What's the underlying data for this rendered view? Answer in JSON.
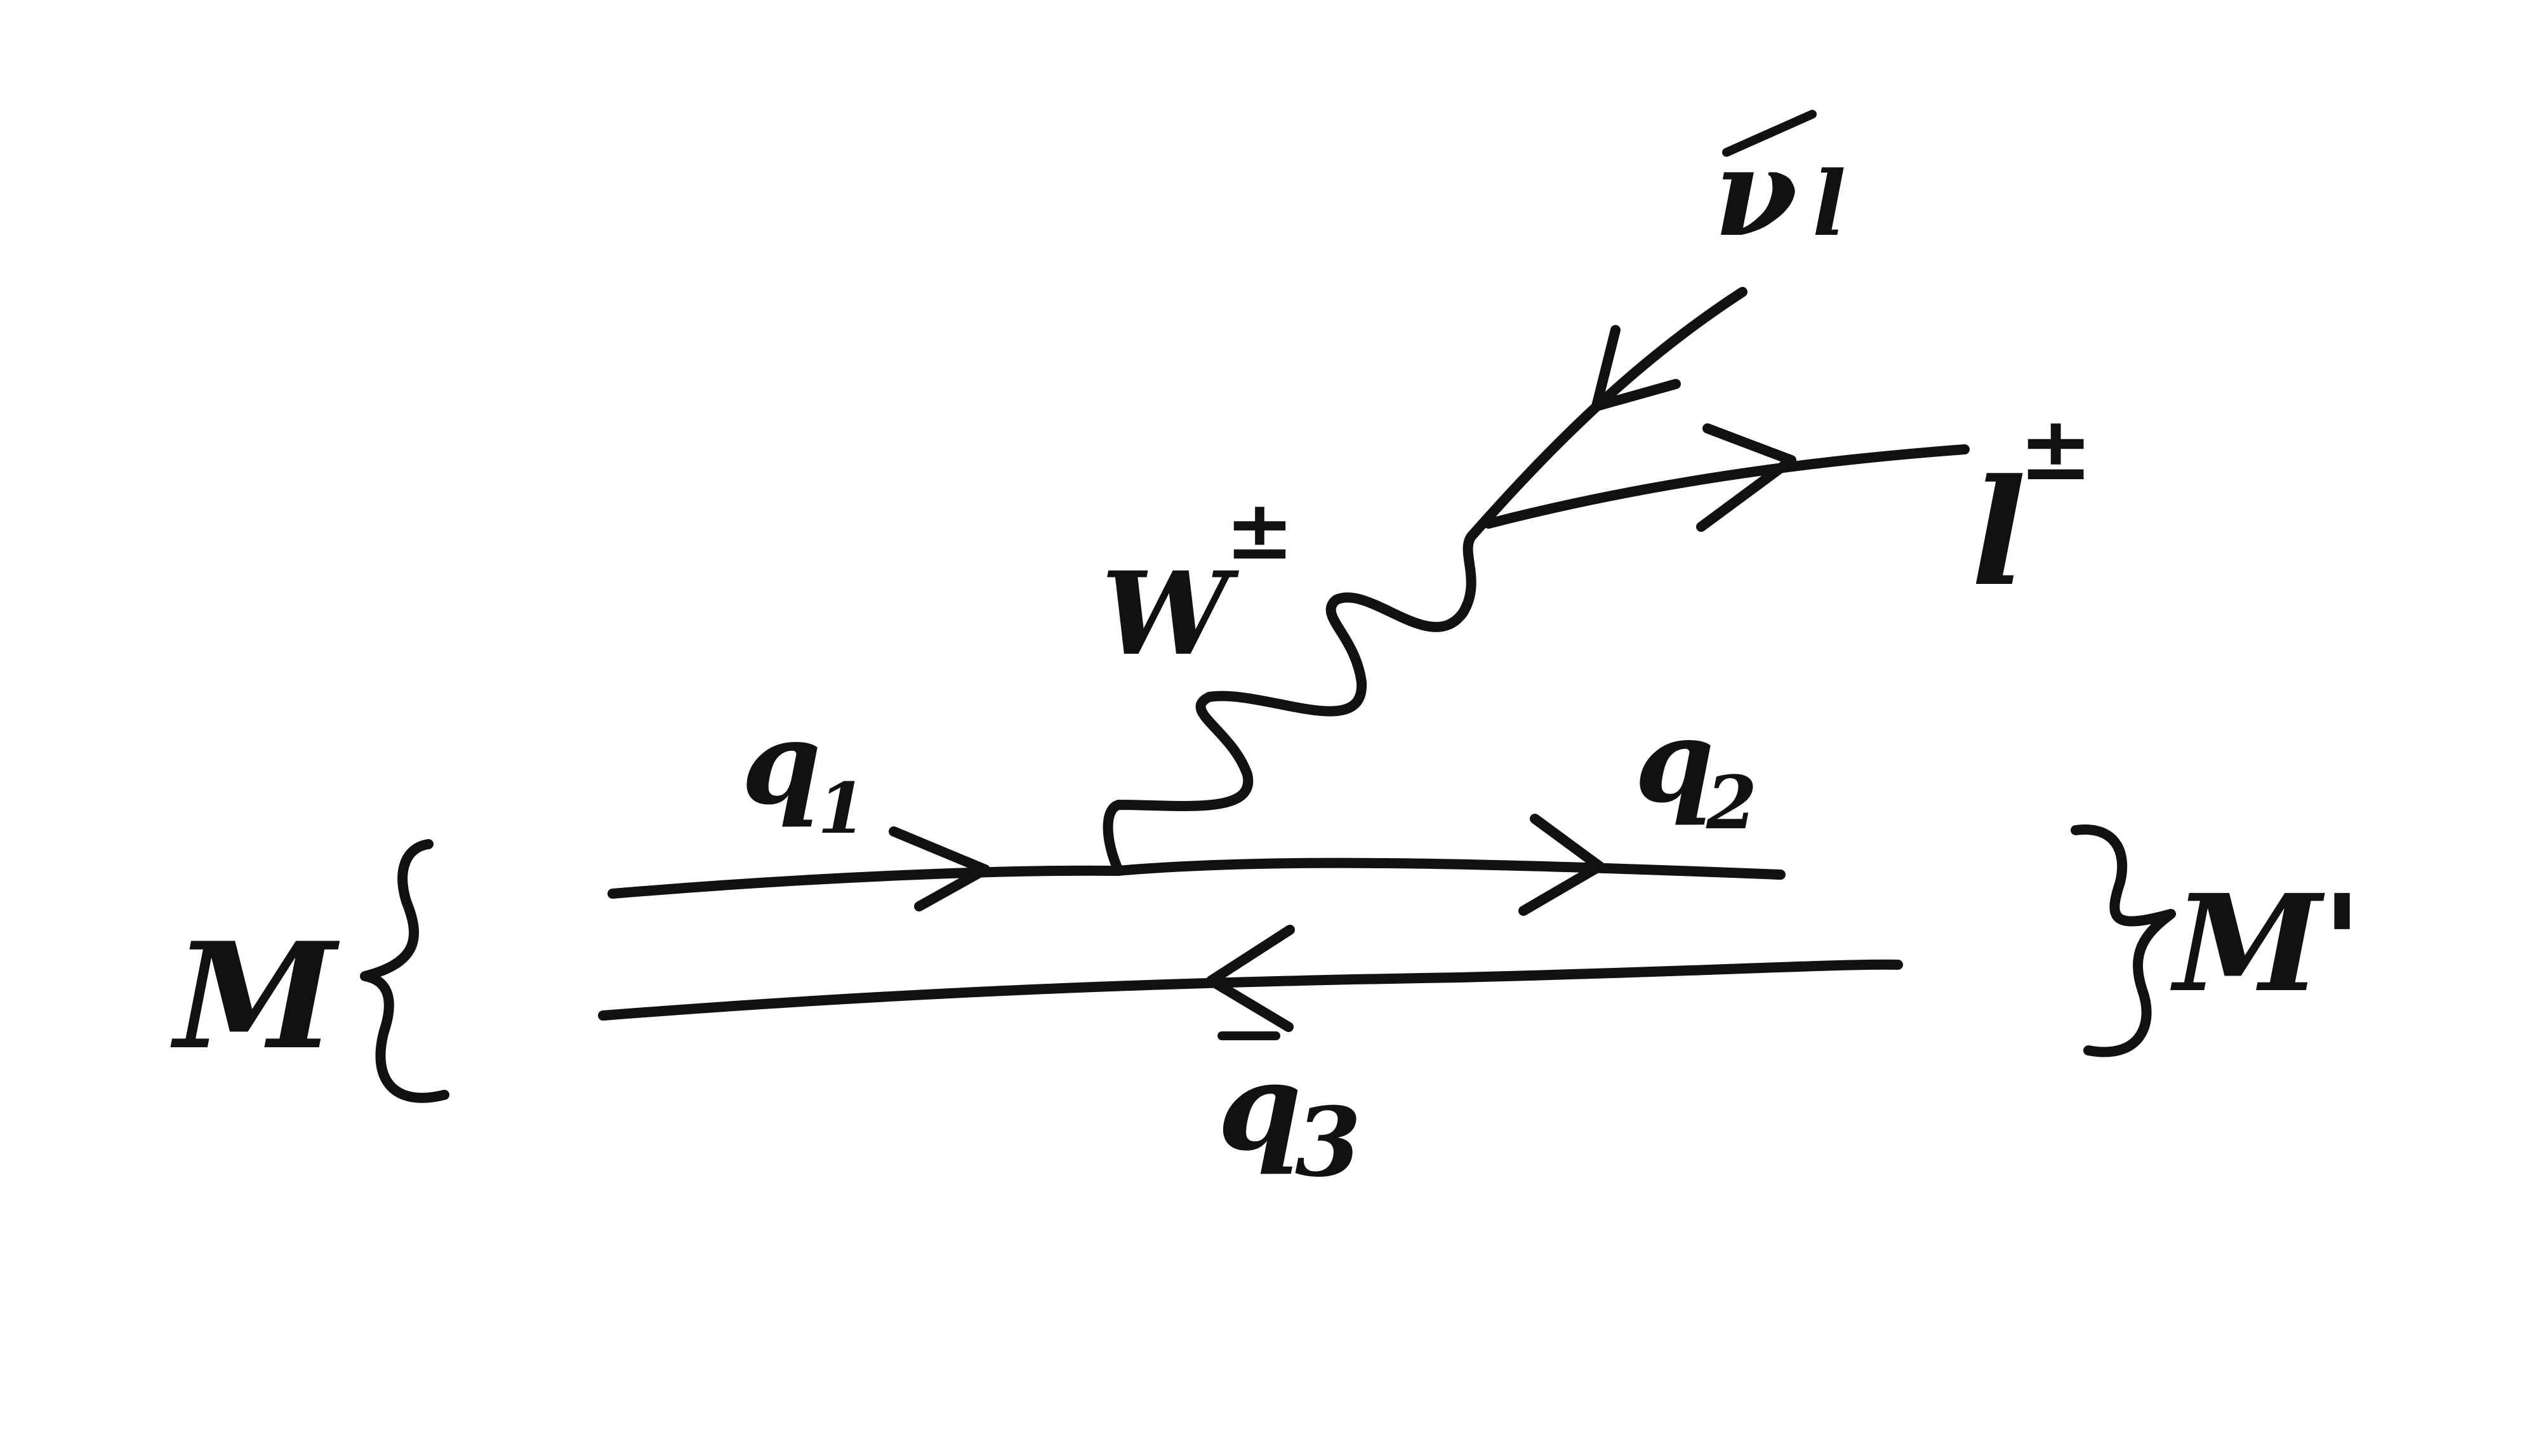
{
  "colors": {
    "ink": "#111111",
    "background": "#ffffff"
  },
  "labels": {
    "initial_meson": "M",
    "final_meson": "M'",
    "quark_in": "q",
    "quark_in_sub": "1",
    "quark_out": "q",
    "quark_out_sub": "2",
    "antiquark": "q",
    "antiquark_sub": "3",
    "boson": "W",
    "boson_charge": "±",
    "lepton": "l",
    "lepton_charge": "±",
    "neutrino": "ν",
    "neutrino_sub": "l"
  },
  "icons": {
    "left_brace": "left-curly-brace-icon",
    "right_brace": "right-curly-brace-icon",
    "arrowhead": "arrowhead-icon"
  }
}
